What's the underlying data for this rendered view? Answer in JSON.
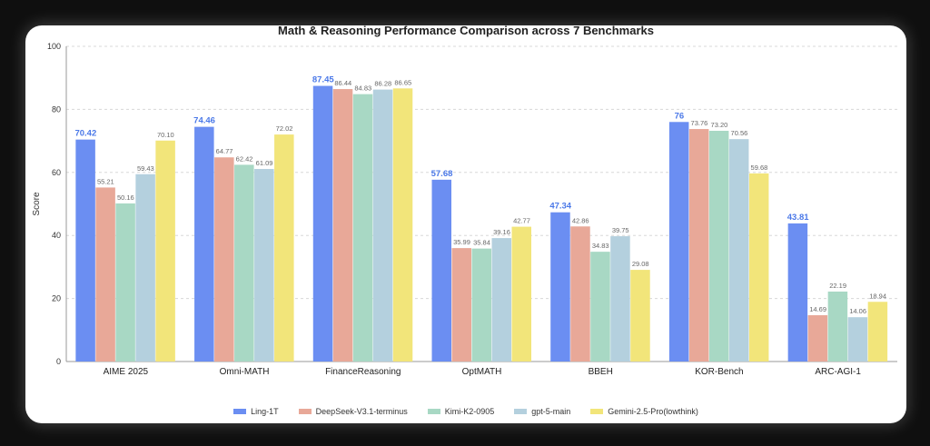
{
  "chart_data": {
    "type": "bar",
    "title": "Math & Reasoning Performance Comparison across 7 Benchmarks",
    "ylabel": "Score",
    "xlabel": "",
    "ylim": [
      0,
      100
    ],
    "yticks": [
      "0",
      "20",
      "40",
      "60",
      "80",
      "100"
    ],
    "grid": true,
    "legend": "bottom",
    "categories": [
      "AIME 2025",
      "Omni-MATH",
      "FinanceReasoning",
      "OptMATH",
      "BBEH",
      "KOR-Bench",
      "ARC-AGI-1"
    ],
    "series": [
      {
        "name": "Ling-1T",
        "color": "#6b8ef2",
        "values": [
          70.42,
          74.46,
          87.45,
          57.68,
          47.34,
          76,
          43.81
        ],
        "labels": [
          "70.42",
          "74.46",
          "87.45",
          "57.68",
          "47.34",
          "76",
          "43.81"
        ]
      },
      {
        "name": "DeepSeek-V3.1-terminus",
        "color": "#e8a898",
        "values": [
          55.21,
          64.77,
          86.44,
          35.99,
          42.86,
          73.76,
          14.69
        ],
        "labels": [
          "55.21",
          "64.77",
          "86.44",
          "35.99",
          "42.86",
          "73.76",
          "14.69"
        ]
      },
      {
        "name": "Kimi-K2-0905",
        "color": "#a8d8c4",
        "values": [
          50.16,
          62.42,
          84.83,
          35.84,
          34.83,
          73.2,
          22.19
        ],
        "labels": [
          "50.16",
          "62.42",
          "84.83",
          "35.84",
          "34.83",
          "73.20",
          "22.19"
        ]
      },
      {
        "name": "gpt-5-main",
        "color": "#b4d0de",
        "values": [
          59.43,
          61.09,
          86.28,
          39.16,
          39.75,
          70.56,
          14.06
        ],
        "labels": [
          "59.43",
          "61.09",
          "86.28",
          "39.16",
          "39.75",
          "70.56",
          "14.06"
        ]
      },
      {
        "name": "Gemini-2.5-Pro(lowthink)",
        "color": "#f2e57a",
        "values": [
          70.1,
          72.02,
          86.65,
          42.77,
          29.08,
          59.68,
          18.94
        ],
        "labels": [
          "70.10",
          "72.02",
          "86.65",
          "42.77",
          "29.08",
          "59.68",
          "18.94"
        ]
      }
    ]
  }
}
